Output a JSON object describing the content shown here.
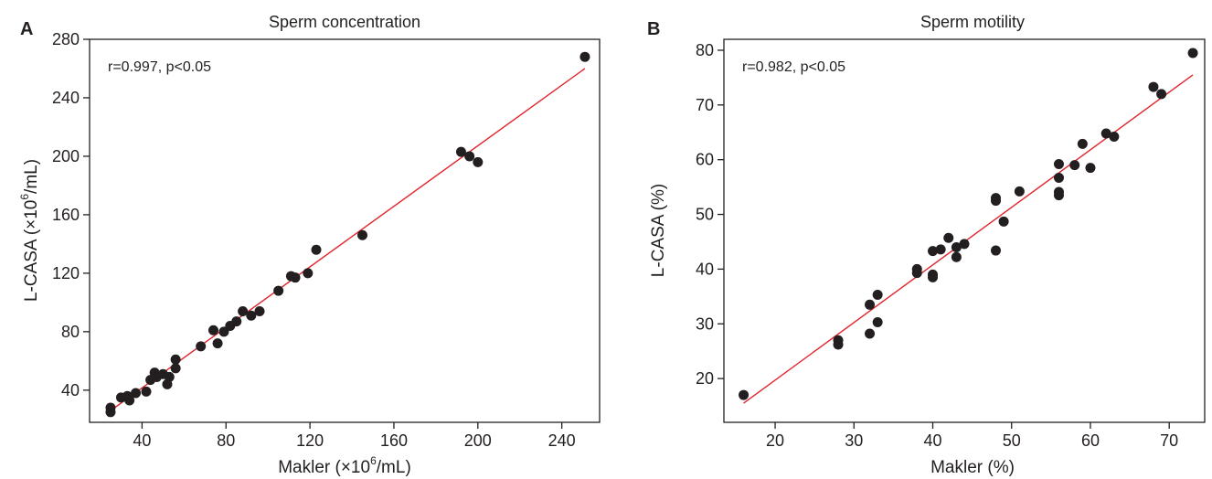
{
  "colors": {
    "point": "#231f20",
    "fit_line": "#e0242b",
    "axis": "#231f20"
  },
  "chart_data": [
    {
      "type": "scatter",
      "panel_label": "A",
      "title": "Sperm concentration",
      "xlabel": {
        "base": "Makler (×10",
        "sup": "6",
        "tail": "/mL)"
      },
      "ylabel": {
        "base": "L-CASA (×10",
        "sup": "6",
        "tail": "/mL)"
      },
      "annotation": "r=0.997, p<0.05",
      "xlim": [
        15,
        258
      ],
      "ylim": [
        18,
        280
      ],
      "xticks": [
        40,
        80,
        120,
        160,
        200,
        240
      ],
      "yticks": [
        40,
        80,
        120,
        160,
        200,
        240,
        280
      ],
      "grid": false,
      "fit_line": {
        "x": [
          25,
          251
        ],
        "y": [
          26,
          260
        ]
      },
      "points": [
        [
          25,
          28
        ],
        [
          25,
          25
        ],
        [
          30,
          35
        ],
        [
          33,
          36
        ],
        [
          34,
          33
        ],
        [
          37,
          38
        ],
        [
          42,
          39
        ],
        [
          44,
          47
        ],
        [
          46,
          52
        ],
        [
          47,
          49
        ],
        [
          50,
          51
        ],
        [
          52,
          44
        ],
        [
          53,
          49
        ],
        [
          56,
          55
        ],
        [
          56,
          61
        ],
        [
          68,
          70
        ],
        [
          74,
          81
        ],
        [
          76,
          72
        ],
        [
          79,
          80
        ],
        [
          82,
          84
        ],
        [
          85,
          87
        ],
        [
          88,
          94
        ],
        [
          92,
          91
        ],
        [
          96,
          94
        ],
        [
          105,
          108
        ],
        [
          111,
          118
        ],
        [
          113,
          117
        ],
        [
          119,
          120
        ],
        [
          123,
          136
        ],
        [
          145,
          146
        ],
        [
          192,
          203
        ],
        [
          196,
          200
        ],
        [
          200,
          196
        ],
        [
          251,
          268
        ]
      ]
    },
    {
      "type": "scatter",
      "panel_label": "B",
      "title": "Sperm motility",
      "xlabel": {
        "base": "Makler (%)",
        "sup": "",
        "tail": ""
      },
      "ylabel": {
        "base": "L-CASA (%)",
        "sup": "",
        "tail": ""
      },
      "annotation": "r=0.982, p<0.05",
      "xlim": [
        13.5,
        74.5
      ],
      "ylim": [
        12,
        82
      ],
      "xticks": [
        20,
        30,
        40,
        50,
        60,
        70
      ],
      "yticks": [
        20,
        30,
        40,
        50,
        60,
        70,
        80
      ],
      "grid": false,
      "fit_line": {
        "x": [
          16,
          73
        ],
        "y": [
          15.5,
          75.5
        ]
      },
      "points": [
        [
          16,
          17
        ],
        [
          28,
          27
        ],
        [
          28,
          26.2
        ],
        [
          32,
          33.5
        ],
        [
          32,
          28.2
        ],
        [
          33,
          35.3
        ],
        [
          33,
          30.3
        ],
        [
          38,
          40
        ],
        [
          38,
          39.3
        ],
        [
          40,
          43.3
        ],
        [
          40,
          39
        ],
        [
          40,
          38.5
        ],
        [
          41,
          43.6
        ],
        [
          42,
          45.7
        ],
        [
          43,
          42.2
        ],
        [
          43,
          44
        ],
        [
          44,
          44.6
        ],
        [
          48,
          53
        ],
        [
          48,
          52.5
        ],
        [
          48,
          43.4
        ],
        [
          49,
          48.7
        ],
        [
          51,
          54.2
        ],
        [
          56,
          59.2
        ],
        [
          56,
          56.7
        ],
        [
          56,
          54.1
        ],
        [
          56,
          53.5
        ],
        [
          58,
          59
        ],
        [
          59,
          62.9
        ],
        [
          60,
          58.5
        ],
        [
          62,
          64.8
        ],
        [
          63,
          64.2
        ],
        [
          68,
          73.3
        ],
        [
          69,
          72
        ],
        [
          73,
          79.5
        ]
      ]
    }
  ]
}
